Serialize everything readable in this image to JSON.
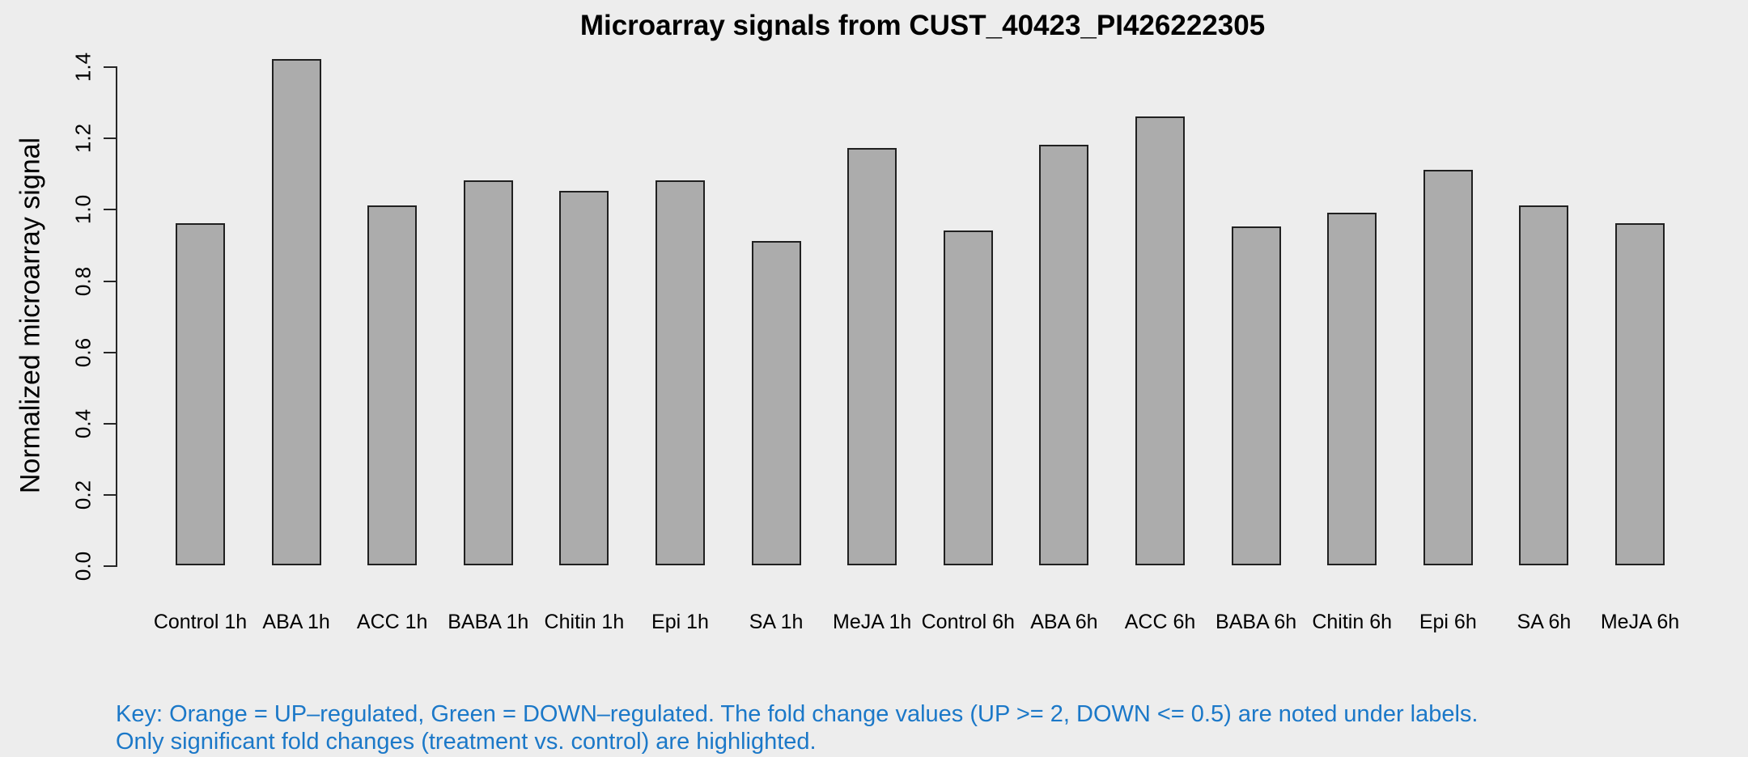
{
  "chart_data": {
    "type": "bar",
    "title": "Microarray signals from CUST_40423_PI426222305",
    "xlabel": "",
    "ylabel": "Normalized microarray signal",
    "ylim": [
      0,
      1.4
    ],
    "yticks": [
      "0.0",
      "0.2",
      "0.4",
      "0.6",
      "0.8",
      "1.0",
      "1.2",
      "1.4"
    ],
    "grid": false,
    "legend_position": "none",
    "categories": [
      "Control 1h",
      "ABA 1h",
      "ACC 1h",
      "BABA 1h",
      "Chitin 1h",
      "Epi 1h",
      "SA 1h",
      "MeJA 1h",
      "Control 6h",
      "ABA 6h",
      "ACC 6h",
      "BABA 6h",
      "Chitin 6h",
      "Epi 6h",
      "SA 6h",
      "MeJA 6h"
    ],
    "values": [
      0.96,
      1.42,
      1.01,
      1.08,
      1.05,
      1.08,
      0.91,
      1.17,
      0.94,
      1.18,
      1.26,
      0.95,
      0.99,
      1.11,
      1.01,
      0.96
    ]
  },
  "key": {
    "line1": "Key: Orange = UP–regulated, Green = DOWN–regulated. The fold change values (UP >= 2, DOWN <= 0.5) are noted under labels.",
    "line2": "Only significant fold changes (treatment vs. control) are highlighted."
  },
  "colors": {
    "background": "#ededed",
    "bar_fill": "#acacac",
    "bar_border": "#202020",
    "axis": "#262626",
    "title_text": "#000000",
    "key_text": "#1b78c8"
  }
}
